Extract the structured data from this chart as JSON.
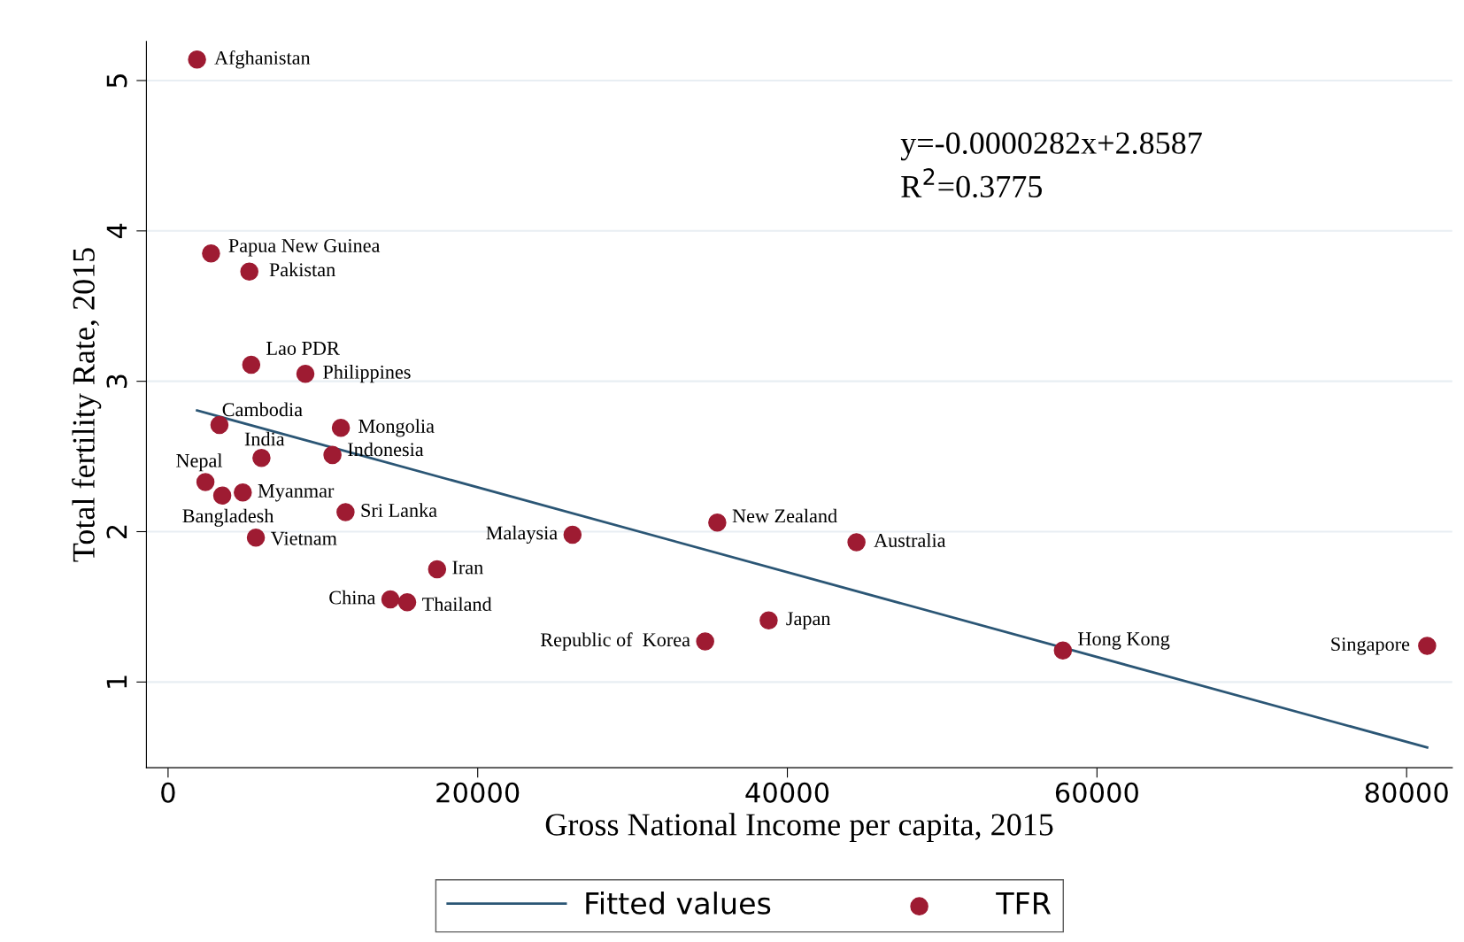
{
  "chart_data": {
    "type": "scatter",
    "xlabel": "Gross National Income per capita, 2015",
    "ylabel": "Total fertility Rate, 2015",
    "xlim": [
      -1400,
      82950
    ],
    "ylim": [
      0.43,
      5.26
    ],
    "xticks": [
      0,
      20000,
      40000,
      60000,
      80000
    ],
    "yticks": [
      1,
      2,
      3,
      4,
      5
    ],
    "grid": "y",
    "legend": "bottom",
    "series": [
      {
        "name": "Fitted values",
        "type": "line",
        "marker": "none",
        "color": "#2b5675",
        "x": [
          1870,
          81327
        ],
        "values": [
          2.806,
          0.565
        ]
      },
      {
        "name": "TFR",
        "marker": "circle",
        "color": "#9e1b32",
        "x": [
          1870,
          2775,
          5249,
          5370,
          8869,
          3318,
          11161,
          6033,
          10618,
          2413,
          3499,
          4827,
          11463,
          5671,
          26124,
          17376,
          14359,
          15445,
          34691,
          38793,
          35475,
          44465,
          57798,
          81327
        ],
        "values": [
          5.14,
          3.85,
          3.73,
          3.11,
          3.05,
          2.71,
          2.69,
          2.49,
          2.51,
          2.33,
          2.24,
          2.26,
          2.13,
          1.96,
          1.98,
          1.75,
          1.55,
          1.53,
          1.27,
          1.41,
          2.06,
          1.93,
          1.21,
          1.24
        ]
      }
    ],
    "annotations": [
      {
        "text": "Afghanistan",
        "x": 1870,
        "y": 5.14
      },
      {
        "text": "Papua New Guinea",
        "x": 2775,
        "y": 3.85
      },
      {
        "text": "Pakistan",
        "x": 5249,
        "y": 3.73
      },
      {
        "text": "Lao PDR",
        "x": 5370,
        "y": 3.11
      },
      {
        "text": "Philippines",
        "x": 8869,
        "y": 3.05
      },
      {
        "text": "Cambodia",
        "x": 3318,
        "y": 2.71
      },
      {
        "text": "Mongolia",
        "x": 11161,
        "y": 2.69
      },
      {
        "text": "India",
        "x": 6033,
        "y": 2.49
      },
      {
        "text": "Indonesia",
        "x": 10618,
        "y": 2.51
      },
      {
        "text": "Nepal",
        "x": 2413,
        "y": 2.33
      },
      {
        "text": "Bangladesh",
        "x": 3499,
        "y": 2.24
      },
      {
        "text": "Myanmar",
        "x": 4827,
        "y": 2.26
      },
      {
        "text": "Sri Lanka",
        "x": 11463,
        "y": 2.13
      },
      {
        "text": "Vietnam",
        "x": 5671,
        "y": 1.96
      },
      {
        "text": "Malaysia",
        "x": 26124,
        "y": 1.98
      },
      {
        "text": "Iran",
        "x": 17376,
        "y": 1.75
      },
      {
        "text": "China",
        "x": 14359,
        "y": 1.55
      },
      {
        "text": "Thailand",
        "x": 15445,
        "y": 1.53
      },
      {
        "text": "Republic of  Korea",
        "x": 34691,
        "y": 1.27
      },
      {
        "text": "Japan",
        "x": 38793,
        "y": 1.41
      },
      {
        "text": "New Zealand",
        "x": 35475,
        "y": 2.06
      },
      {
        "text": "Australia",
        "x": 44465,
        "y": 1.93
      },
      {
        "text": "Hong Kong",
        "x": 57798,
        "y": 1.21
      },
      {
        "text": "Singapore",
        "x": 81327,
        "y": 1.24
      },
      "y=-0.0000282x+2.8587",
      "R$^{2}$=0.3775"
    ]
  }
}
